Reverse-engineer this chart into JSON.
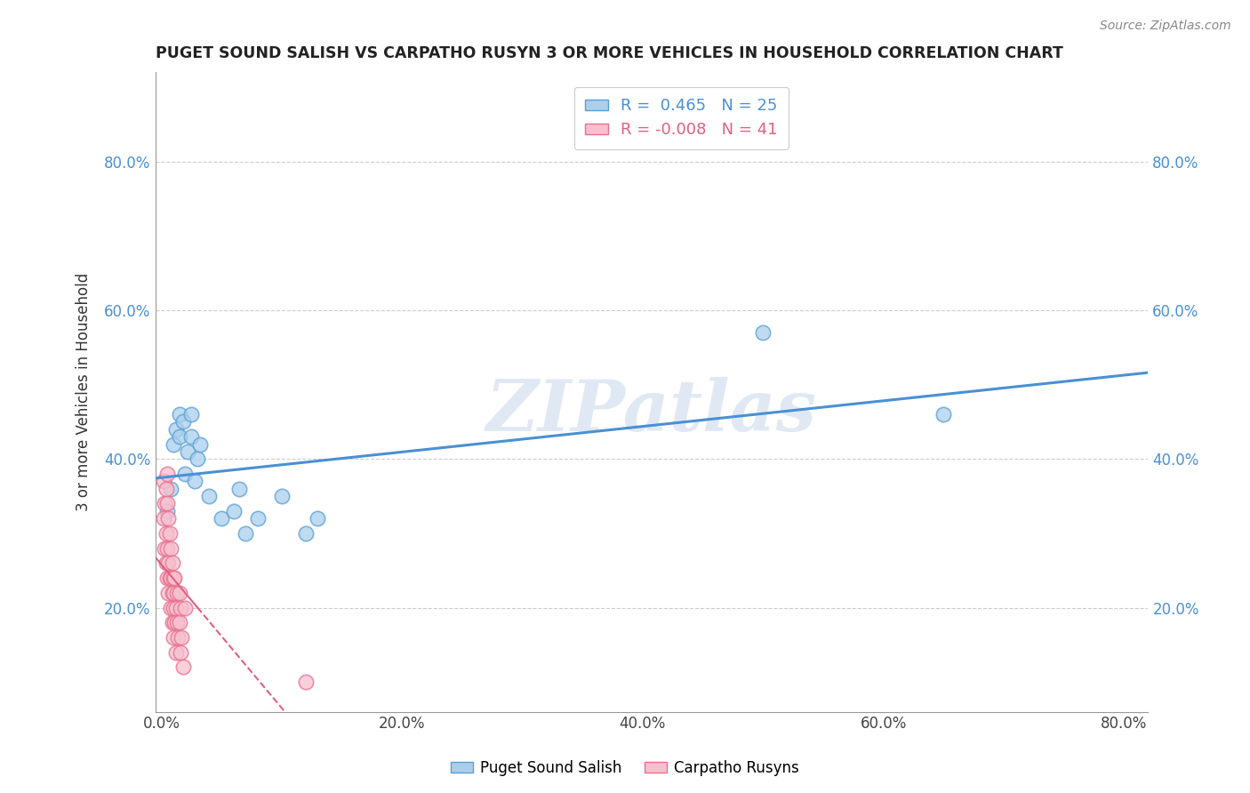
{
  "title": "PUGET SOUND SALISH VS CARPATHO RUSYN 3 OR MORE VEHICLES IN HOUSEHOLD CORRELATION CHART",
  "source": "Source: ZipAtlas.com",
  "ylabel": "3 or more Vehicles in Household",
  "xlabel_ticks": [
    "0.0%",
    "20.0%",
    "40.0%",
    "60.0%",
    "80.0%"
  ],
  "xlabel_vals": [
    0.0,
    0.2,
    0.4,
    0.6,
    0.8
  ],
  "ytick_labels": [
    "20.0%",
    "40.0%",
    "60.0%",
    "80.0%"
  ],
  "ytick_vals": [
    0.2,
    0.4,
    0.6,
    0.8
  ],
  "xlim": [
    -0.005,
    0.82
  ],
  "ylim": [
    0.06,
    0.92
  ],
  "blue_R": 0.465,
  "blue_N": 25,
  "pink_R": -0.008,
  "pink_N": 41,
  "blue_color": "#aacfed",
  "pink_color": "#f7c0ce",
  "blue_edge_color": "#5a9fd4",
  "pink_edge_color": "#e87090",
  "blue_line_color": "#4a90d4",
  "pink_line_color": "#e06080",
  "watermark": "ZIPatlas",
  "legend_label_blue": "Puget Sound Salish",
  "legend_label_pink": "Carpatho Rusyns",
  "blue_scatter_x": [
    0.005,
    0.008,
    0.01,
    0.012,
    0.015,
    0.015,
    0.018,
    0.02,
    0.022,
    0.025,
    0.025,
    0.028,
    0.03,
    0.032,
    0.04,
    0.05,
    0.06,
    0.065,
    0.07,
    0.08,
    0.1,
    0.12,
    0.13,
    0.5,
    0.65
  ],
  "blue_scatter_y": [
    0.33,
    0.36,
    0.42,
    0.44,
    0.46,
    0.43,
    0.45,
    0.38,
    0.41,
    0.43,
    0.46,
    0.37,
    0.4,
    0.42,
    0.35,
    0.32,
    0.33,
    0.36,
    0.3,
    0.32,
    0.35,
    0.3,
    0.32,
    0.57,
    0.46
  ],
  "pink_scatter_x": [
    0.002,
    0.002,
    0.003,
    0.003,
    0.004,
    0.004,
    0.004,
    0.005,
    0.005,
    0.005,
    0.005,
    0.006,
    0.006,
    0.006,
    0.007,
    0.007,
    0.008,
    0.008,
    0.008,
    0.009,
    0.009,
    0.009,
    0.01,
    0.01,
    0.01,
    0.01,
    0.011,
    0.011,
    0.012,
    0.012,
    0.013,
    0.013,
    0.014,
    0.015,
    0.015,
    0.016,
    0.016,
    0.017,
    0.018,
    0.02,
    0.12
  ],
  "pink_scatter_y": [
    0.37,
    0.32,
    0.34,
    0.28,
    0.36,
    0.3,
    0.26,
    0.38,
    0.34,
    0.28,
    0.24,
    0.32,
    0.26,
    0.22,
    0.3,
    0.24,
    0.28,
    0.24,
    0.2,
    0.26,
    0.22,
    0.18,
    0.24,
    0.2,
    0.16,
    0.22,
    0.24,
    0.18,
    0.2,
    0.14,
    0.22,
    0.18,
    0.16,
    0.22,
    0.18,
    0.2,
    0.14,
    0.16,
    0.12,
    0.2,
    0.1
  ],
  "background_color": "#ffffff",
  "grid_color": "#cccccc"
}
